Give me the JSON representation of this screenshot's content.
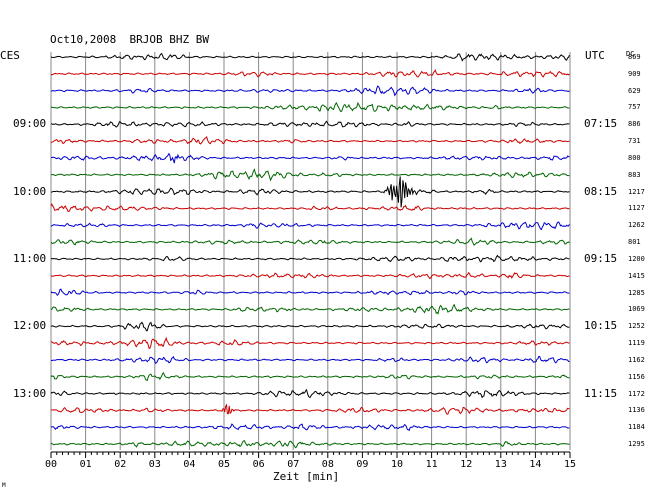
{
  "header": {
    "date": "Oct10,2008",
    "station": "BRJOB BHZ BW",
    "tz_left": "CES",
    "tz_right": "UTC",
    "dc_label": "DC"
  },
  "footer": {
    "corner_mark": "M"
  },
  "colors": {
    "trace_cycle": [
      "#000000",
      "#cc0000",
      "#0000cc",
      "#006600"
    ],
    "grid": "#888888",
    "background": "#ffffff"
  },
  "chart_data": {
    "type": "line",
    "xlabel": "Zeit [min]",
    "xlim": [
      0,
      15
    ],
    "x_ticks": [
      "00",
      "01",
      "02",
      "03",
      "04",
      "05",
      "06",
      "07",
      "08",
      "09",
      "10",
      "11",
      "12",
      "13",
      "14",
      "15"
    ],
    "left_hour_labels": [
      {
        "label": "09:00",
        "row": 4
      },
      {
        "label": "10:00",
        "row": 8
      },
      {
        "label": "11:00",
        "row": 12
      },
      {
        "label": "12:00",
        "row": 16
      },
      {
        "label": "13:00",
        "row": 20
      }
    ],
    "right_hour_labels": [
      {
        "label": "07:15",
        "row": 4
      },
      {
        "label": "08:15",
        "row": 8
      },
      {
        "label": "09:15",
        "row": 12
      },
      {
        "label": "10:15",
        "row": 16
      },
      {
        "label": "11:15",
        "row": 20
      }
    ],
    "row_count": 24,
    "dc_values": [
      869,
      909,
      629,
      757,
      886,
      731,
      800,
      883,
      1217,
      1127,
      1262,
      801,
      1200,
      1415,
      1285,
      1069,
      1252,
      1119,
      1162,
      1156,
      1172,
      1136,
      1184,
      1295
    ],
    "events": [
      {
        "row": 6,
        "minute_start": 3.3,
        "minute_end": 3.9,
        "relative_amplitude": 2.2
      },
      {
        "row": 8,
        "minute_start": 9.6,
        "minute_end": 11.0,
        "relative_amplitude": 8.0
      },
      {
        "row": 21,
        "minute_start": 4.9,
        "minute_end": 5.5,
        "relative_amplitude": 3.0
      }
    ],
    "grid": true
  }
}
